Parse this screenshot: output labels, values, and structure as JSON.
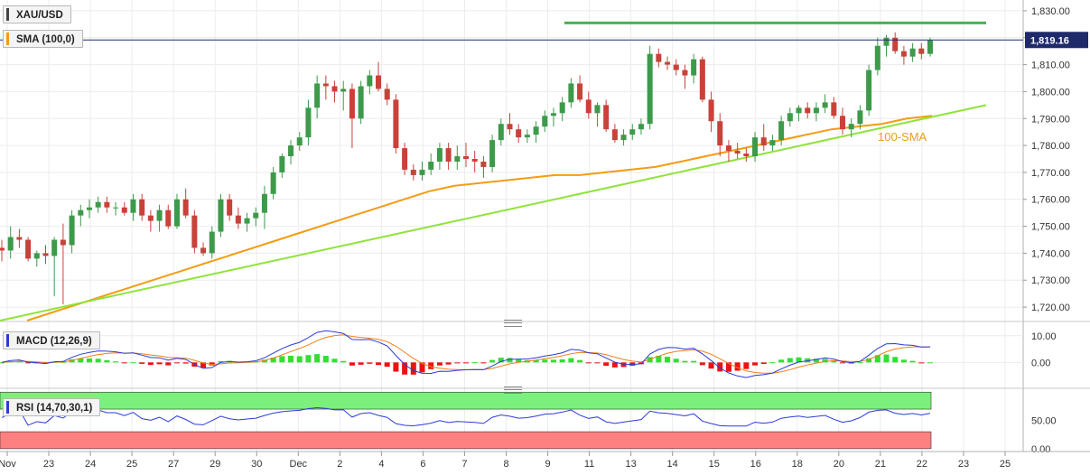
{
  "symbol": "XAU/USD",
  "indicators": {
    "sma_label": "SMA (100,0)",
    "macd_label": "MACD (12,26,9)",
    "rsi_label": "RSI (14,70,30,1)"
  },
  "colors": {
    "up": "#3d9a4a",
    "down": "#c8423a",
    "sma": "#f39c12",
    "trendline": "#8fe339",
    "resistance": "#4caf50",
    "macd_line": "#2d3bd6",
    "signal_line": "#f07f1a",
    "hist_up": "#33dd33",
    "hist_down": "#ee1111",
    "rsi_line": "#2d3bd6",
    "overbought_zone": "#7cf07c",
    "oversold_zone": "#ff8080"
  },
  "chart_data": {
    "type": "candlestick",
    "price_axis": {
      "ticks": [
        1720,
        1730,
        1740,
        1750,
        1760,
        1770,
        1780,
        1790,
        1800,
        1810,
        1820,
        1830
      ],
      "tick_labels": [
        "1,720.00",
        "1,730.00",
        "1,740.00",
        "1,750.00",
        "1,760.00",
        "1,770.00",
        "1,780.00",
        "1,790.00",
        "1,800.00",
        "1,810.00",
        "1,820.00",
        "1,830.00"
      ],
      "range": [
        1716,
        1834
      ],
      "last_price": 1819.16,
      "last_price_label": "1,819.16"
    },
    "x_labels": [
      "Nov",
      "23",
      "24",
      "25",
      "27",
      "29",
      "30",
      "Dec",
      "2",
      "4",
      "6",
      "7",
      "8",
      "9",
      "11",
      "13",
      "14",
      "15",
      "16",
      "18",
      "20",
      "21",
      "22",
      "23",
      "25"
    ],
    "candles_ohlc": [
      [
        1742,
        1745,
        1737,
        1741
      ],
      [
        1741,
        1750,
        1738,
        1746
      ],
      [
        1746,
        1749,
        1742,
        1745
      ],
      [
        1745,
        1746,
        1737,
        1738
      ],
      [
        1738,
        1741,
        1735,
        1740
      ],
      [
        1740,
        1743,
        1736,
        1739
      ],
      [
        1739,
        1746,
        1724,
        1745
      ],
      [
        1745,
        1751,
        1721,
        1743
      ],
      [
        1743,
        1756,
        1740,
        1754
      ],
      [
        1754,
        1758,
        1750,
        1756
      ],
      [
        1756,
        1760,
        1753,
        1757
      ],
      [
        1757,
        1761,
        1755,
        1759
      ],
      [
        1759,
        1761,
        1755,
        1757
      ],
      [
        1757,
        1759,
        1754,
        1757
      ],
      [
        1757,
        1759,
        1754,
        1755
      ],
      [
        1755,
        1762,
        1752,
        1760
      ],
      [
        1760,
        1762,
        1752,
        1754
      ],
      [
        1754,
        1756,
        1748,
        1752
      ],
      [
        1752,
        1758,
        1748,
        1756
      ],
      [
        1756,
        1758,
        1749,
        1750
      ],
      [
        1750,
        1762,
        1749,
        1760
      ],
      [
        1760,
        1764,
        1753,
        1754
      ],
      [
        1754,
        1756,
        1740,
        1742
      ],
      [
        1742,
        1744,
        1739,
        1740
      ],
      [
        1740,
        1750,
        1738,
        1748
      ],
      [
        1748,
        1762,
        1746,
        1760
      ],
      [
        1760,
        1762,
        1752,
        1754
      ],
      [
        1754,
        1757,
        1749,
        1751
      ],
      [
        1751,
        1755,
        1748,
        1753
      ],
      [
        1753,
        1757,
        1750,
        1755
      ],
      [
        1755,
        1765,
        1749,
        1762
      ],
      [
        1762,
        1772,
        1760,
        1770
      ],
      [
        1770,
        1777,
        1768,
        1776
      ],
      [
        1776,
        1782,
        1773,
        1780
      ],
      [
        1780,
        1785,
        1778,
        1783
      ],
      [
        1783,
        1797,
        1780,
        1794
      ],
      [
        1794,
        1806,
        1790,
        1803
      ],
      [
        1803,
        1806,
        1797,
        1802
      ],
      [
        1802,
        1804,
        1796,
        1800
      ],
      [
        1800,
        1804,
        1793,
        1801
      ],
      [
        1801,
        1803,
        1779,
        1790
      ],
      [
        1790,
        1804,
        1788,
        1802
      ],
      [
        1802,
        1808,
        1799,
        1806
      ],
      [
        1806,
        1811,
        1800,
        1801
      ],
      [
        1801,
        1803,
        1795,
        1797
      ],
      [
        1797,
        1799,
        1777,
        1779
      ],
      [
        1779,
        1781,
        1769,
        1771
      ],
      [
        1771,
        1773,
        1767,
        1769
      ],
      [
        1769,
        1774,
        1767,
        1771
      ],
      [
        1771,
        1777,
        1769,
        1774
      ],
      [
        1774,
        1781,
        1771,
        1779
      ],
      [
        1779,
        1781,
        1771,
        1774
      ],
      [
        1774,
        1780,
        1771,
        1776
      ],
      [
        1776,
        1781,
        1772,
        1775
      ],
      [
        1775,
        1778,
        1770,
        1774
      ],
      [
        1774,
        1776,
        1768,
        1772
      ],
      [
        1772,
        1784,
        1770,
        1782
      ],
      [
        1782,
        1790,
        1780,
        1788
      ],
      [
        1788,
        1792,
        1784,
        1786
      ],
      [
        1786,
        1788,
        1781,
        1783
      ],
      [
        1783,
        1786,
        1781,
        1784
      ],
      [
        1784,
        1789,
        1781,
        1787
      ],
      [
        1787,
        1793,
        1785,
        1791
      ],
      [
        1791,
        1794,
        1787,
        1792
      ],
      [
        1792,
        1798,
        1789,
        1796
      ],
      [
        1796,
        1805,
        1794,
        1803
      ],
      [
        1803,
        1806,
        1796,
        1797
      ],
      [
        1797,
        1800,
        1790,
        1792
      ],
      [
        1792,
        1796,
        1787,
        1795
      ],
      [
        1795,
        1797,
        1785,
        1786
      ],
      [
        1786,
        1788,
        1781,
        1782
      ],
      [
        1782,
        1786,
        1780,
        1784
      ],
      [
        1784,
        1788,
        1782,
        1786
      ],
      [
        1786,
        1790,
        1784,
        1788
      ],
      [
        1788,
        1817,
        1786,
        1814
      ],
      [
        1814,
        1816,
        1809,
        1811
      ],
      [
        1811,
        1813,
        1808,
        1810
      ],
      [
        1810,
        1812,
        1806,
        1808
      ],
      [
        1808,
        1810,
        1801,
        1806
      ],
      [
        1806,
        1814,
        1803,
        1812
      ],
      [
        1812,
        1813,
        1796,
        1797
      ],
      [
        1797,
        1800,
        1785,
        1789
      ],
      [
        1789,
        1792,
        1776,
        1780
      ],
      [
        1780,
        1782,
        1774,
        1778
      ],
      [
        1778,
        1781,
        1775,
        1777
      ],
      [
        1777,
        1779,
        1774,
        1776
      ],
      [
        1776,
        1785,
        1774,
        1783
      ],
      [
        1783,
        1788,
        1778,
        1780
      ],
      [
        1780,
        1784,
        1778,
        1782
      ],
      [
        1782,
        1791,
        1780,
        1789
      ],
      [
        1789,
        1794,
        1787,
        1792
      ],
      [
        1792,
        1795,
        1789,
        1794
      ],
      [
        1794,
        1796,
        1790,
        1792
      ],
      [
        1792,
        1796,
        1789,
        1794
      ],
      [
        1794,
        1799,
        1792,
        1796
      ],
      [
        1796,
        1798,
        1790,
        1791
      ],
      [
        1791,
        1794,
        1784,
        1786
      ],
      [
        1786,
        1790,
        1783,
        1788
      ],
      [
        1788,
        1795,
        1786,
        1793
      ],
      [
        1793,
        1810,
        1791,
        1808
      ],
      [
        1808,
        1820,
        1806,
        1817
      ],
      [
        1817,
        1821,
        1813,
        1820
      ],
      [
        1820,
        1822,
        1814,
        1815
      ],
      [
        1815,
        1817,
        1810,
        1813
      ],
      [
        1813,
        1818,
        1811,
        1816
      ],
      [
        1816,
        1818,
        1812,
        1814
      ],
      [
        1814,
        1820,
        1813,
        1819
      ]
    ],
    "sma_100": [
      1715,
      1718,
      1721,
      1724,
      1727,
      1730,
      1733,
      1736,
      1739,
      1742,
      1745,
      1748,
      1751,
      1754,
      1757,
      1760,
      1763,
      1765,
      1766,
      1767,
      1768,
      1769,
      1769,
      1770,
      1771,
      1772,
      1774,
      1776,
      1778,
      1780,
      1782,
      1784,
      1786,
      1787,
      1788,
      1790,
      1791
    ],
    "trendline": {
      "start": 1715,
      "end": 1795
    },
    "resistance_level": 1825.5,
    "annotation": "100-SMA",
    "macd": {
      "ticks": [
        0,
        10
      ],
      "tick_labels": [
        "0.00",
        "10.00"
      ],
      "range": [
        -7,
        14
      ]
    },
    "rsi": {
      "ticks": [
        0,
        50
      ],
      "tick_labels": [
        "0.00",
        "50.00"
      ],
      "range": [
        -5,
        102
      ]
    }
  }
}
